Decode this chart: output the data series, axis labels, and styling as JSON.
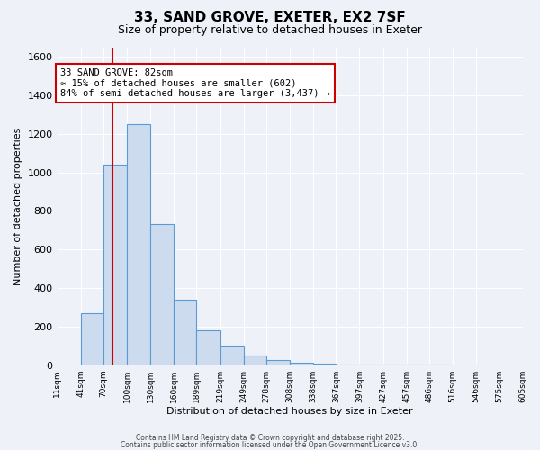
{
  "title": "33, SAND GROVE, EXETER, EX2 7SF",
  "subtitle": "Size of property relative to detached houses in Exeter",
  "xlabel": "Distribution of detached houses by size in Exeter",
  "ylabel": "Number of detached properties",
  "bar_counts": [
    0,
    270,
    1040,
    1250,
    730,
    340,
    180,
    100,
    50,
    25,
    12,
    8,
    5,
    3,
    2,
    1,
    1,
    0,
    0,
    0
  ],
  "bin_edges": [
    11,
    41,
    70,
    100,
    130,
    160,
    189,
    219,
    249,
    278,
    308,
    338,
    367,
    397,
    427,
    457,
    486,
    516,
    546,
    575,
    605
  ],
  "property_size": 82,
  "property_label": "33 SAND GROVE: 82sqm",
  "pct_smaller": "≈ 15% of detached houses are smaller (602)",
  "pct_larger": "84% of semi-detached houses are larger (3,437) →",
  "bar_facecolor": "#ccdcee",
  "bar_edgecolor": "#5b9bd5",
  "line_color": "#cc0000",
  "annotation_border": "#cc0000",
  "ylim": [
    0,
    1650
  ],
  "footer1": "Contains HM Land Registry data © Crown copyright and database right 2025.",
  "footer2": "Contains public sector information licensed under the Open Government Licence v3.0.",
  "bg_color": "#eef2f8"
}
